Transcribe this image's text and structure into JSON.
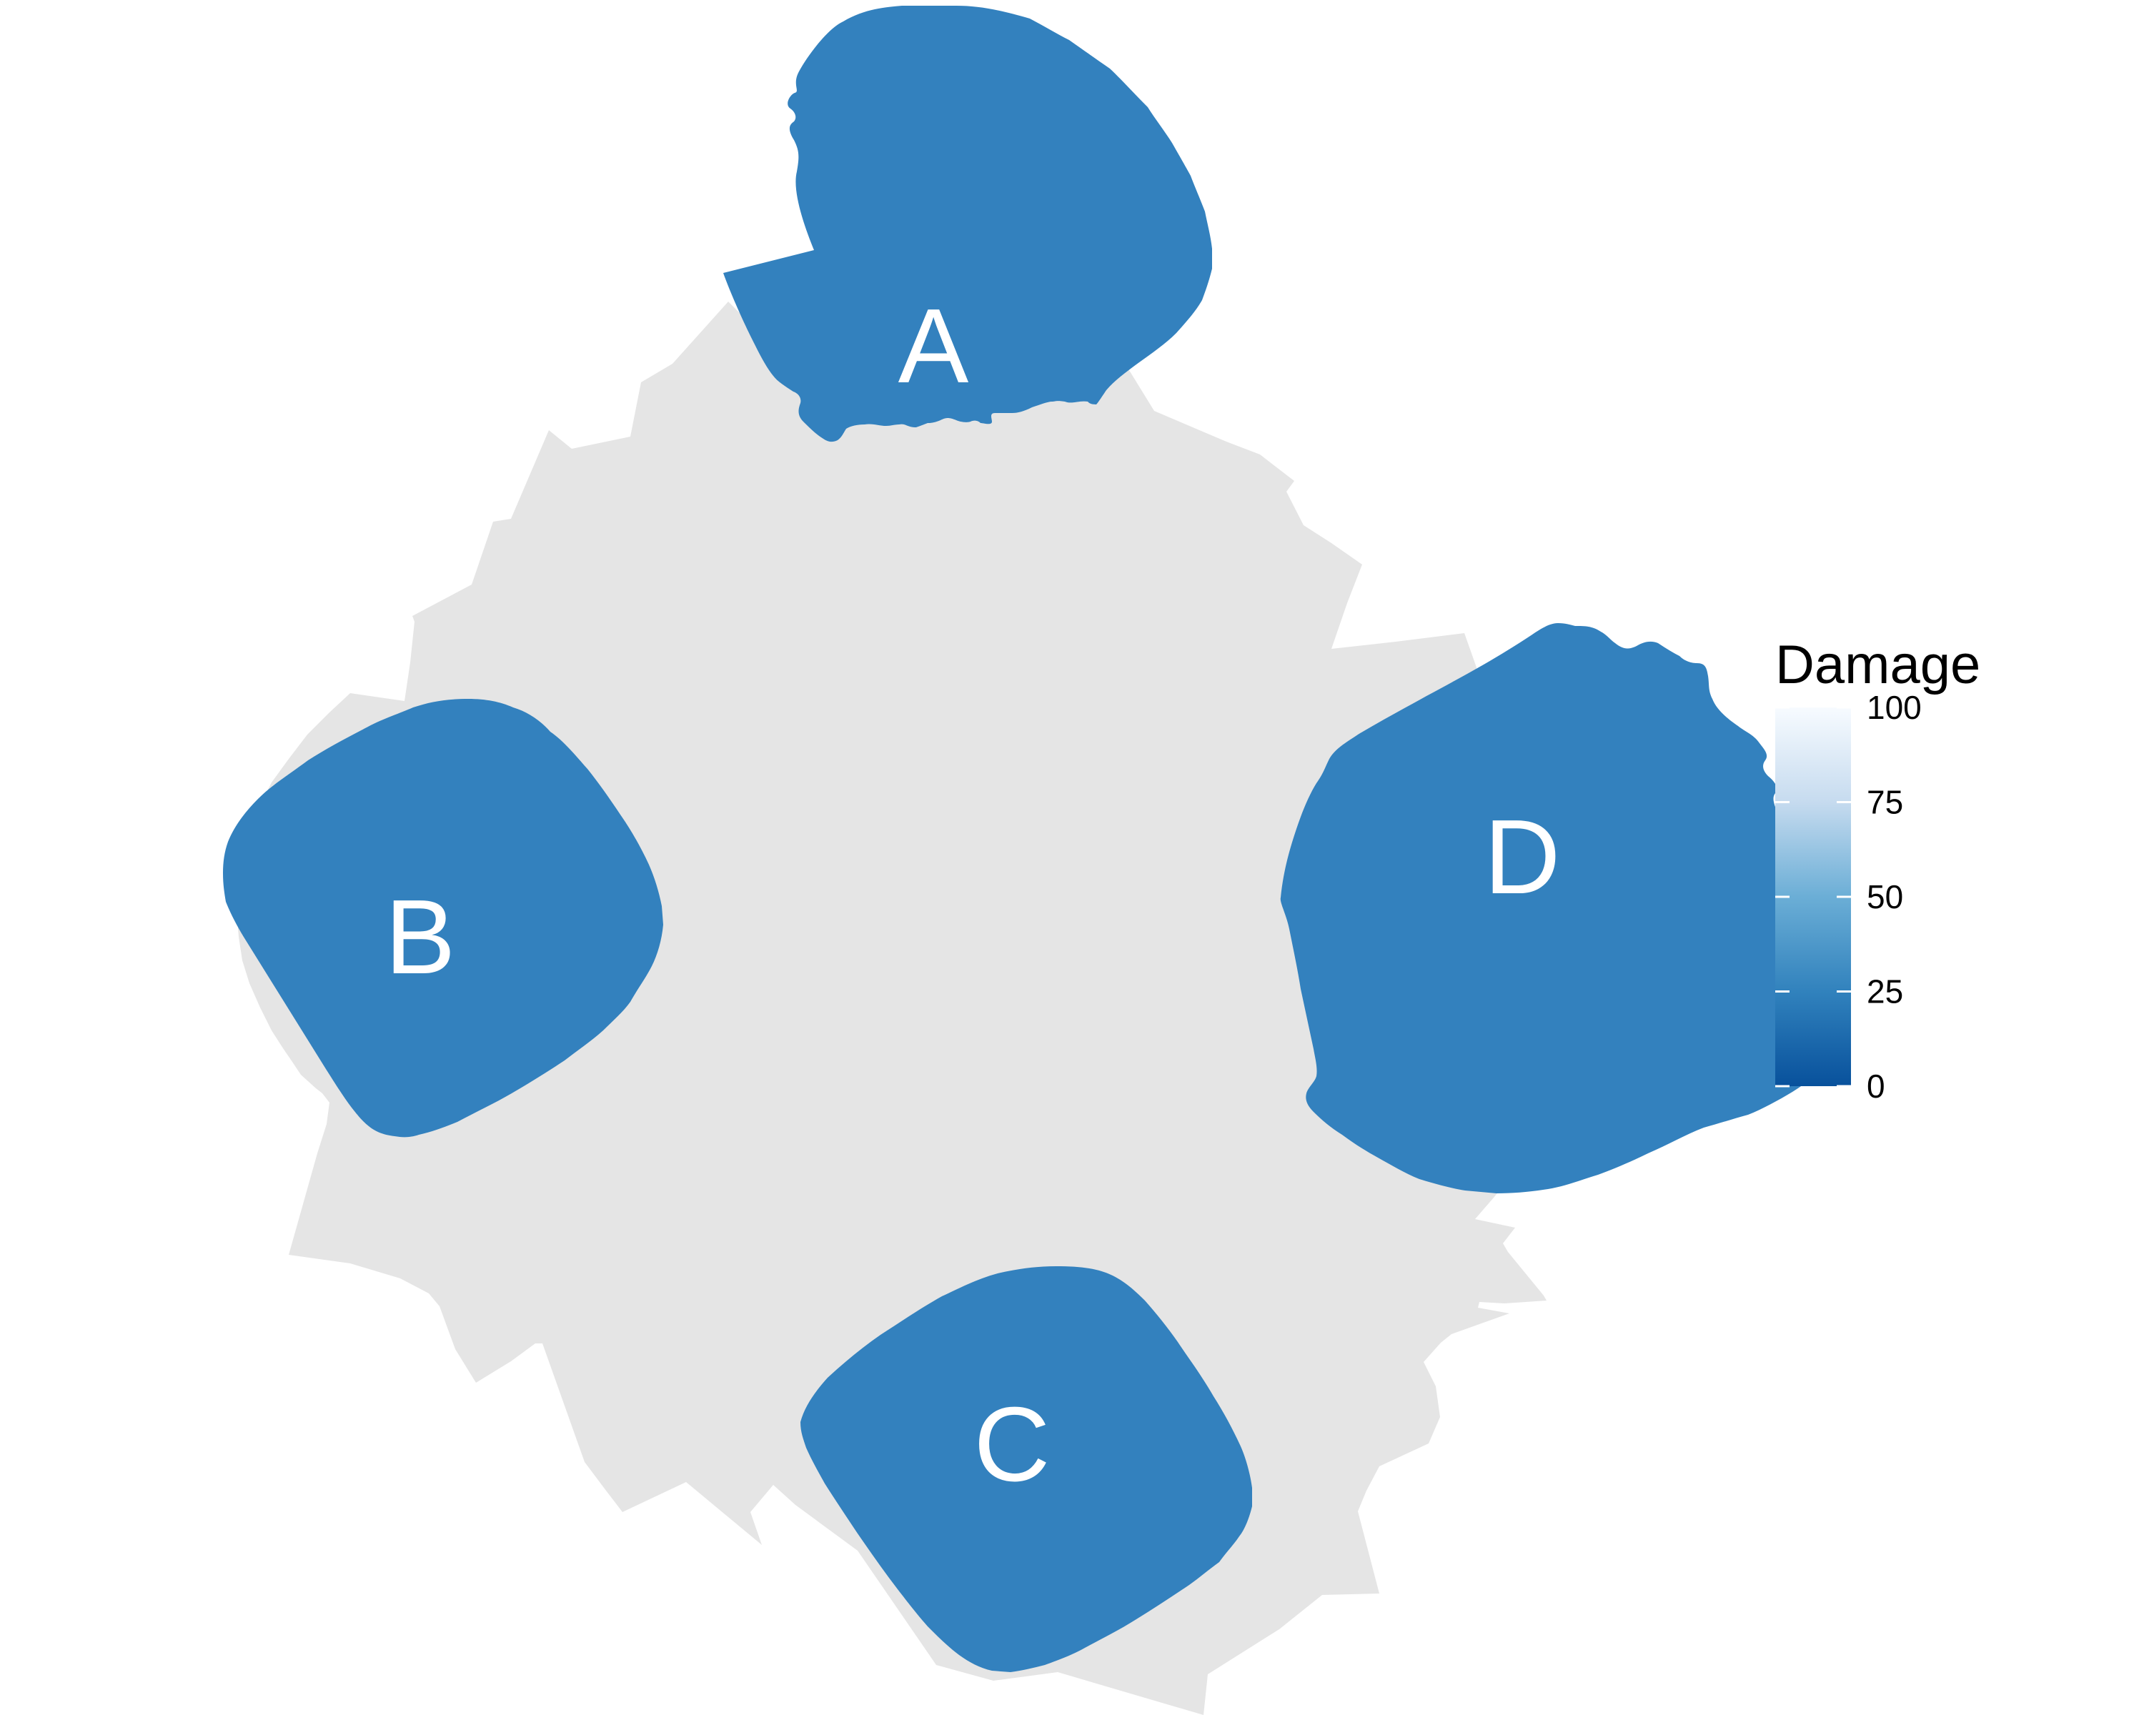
{
  "figure": {
    "background_color": "#ffffff",
    "base_color": "#e5e5e5",
    "regions": [
      {
        "id": "A",
        "label": "A",
        "damage": 25,
        "color": "#3381be"
      },
      {
        "id": "B",
        "label": "B",
        "damage": 25,
        "color": "#3381be"
      },
      {
        "id": "C",
        "label": "C",
        "damage": 25,
        "color": "#3381be"
      },
      {
        "id": "D",
        "label": "D",
        "damage": 25,
        "color": "#3381be"
      }
    ]
  },
  "legend": {
    "title": "Damage",
    "range": [
      0,
      100
    ],
    "colors": [
      "#08519c",
      "#3182bd",
      "#6baed6",
      "#c6dbef",
      "#f7fbff"
    ],
    "ticks": [
      {
        "value": 100,
        "label": "100"
      },
      {
        "value": 75,
        "label": "75"
      },
      {
        "value": 50,
        "label": "50"
      },
      {
        "value": 25,
        "label": "25"
      },
      {
        "value": 0,
        "label": "0"
      }
    ]
  }
}
